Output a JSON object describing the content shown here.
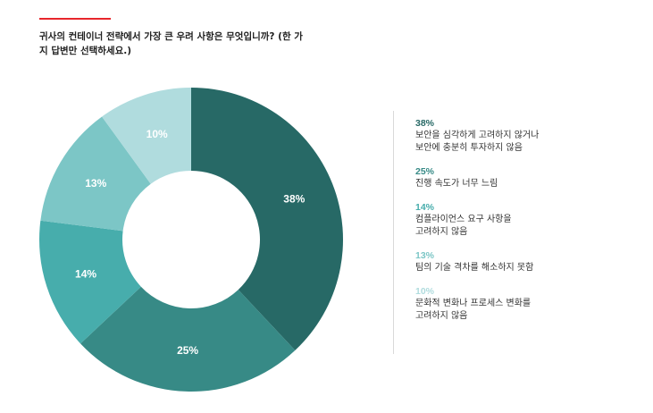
{
  "question": "귀사의 컨테이너 전략에서 가장 큰 우려 사항은 무엇입니까? (한 가지 답변만 선택하세요.)",
  "chart_data": {
    "type": "pie",
    "donut": true,
    "slices": [
      {
        "value": 38,
        "label": "38%",
        "color": "#276966",
        "text": "보안을 심각하게 고려하지 않거나\n보안에 충분히 투자하지 않음"
      },
      {
        "value": 25,
        "label": "25%",
        "color": "#378a86",
        "text": "진행 속도가 너무 느림"
      },
      {
        "value": 14,
        "label": "14%",
        "color": "#47adac",
        "text": "컴플라이언스 요구 사항을\n고려하지 않음"
      },
      {
        "value": 13,
        "label": "13%",
        "color": "#7cc6c6",
        "text": "팀의 기술 격차를 해소하지 못함"
      },
      {
        "value": 10,
        "label": "10%",
        "color": "#b0dcde",
        "text": "문화적 변화나 프로세스 변화를\n고려하지 않음"
      }
    ]
  }
}
